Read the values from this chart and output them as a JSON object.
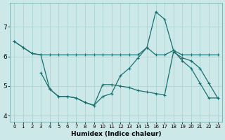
{
  "xlabel": "Humidex (Indice chaleur)",
  "background_color": "#cce8e8",
  "grid_color": "#aed4d4",
  "line_color": "#1a7070",
  "xlim": [
    -0.5,
    23.5
  ],
  "ylim": [
    3.8,
    7.8
  ],
  "yticks": [
    4,
    5,
    6,
    7
  ],
  "xticks": [
    0,
    1,
    2,
    3,
    4,
    5,
    6,
    7,
    8,
    9,
    10,
    11,
    12,
    13,
    14,
    15,
    16,
    17,
    18,
    19,
    20,
    21,
    22,
    23
  ],
  "line1_x": [
    0,
    1,
    2,
    3,
    4,
    5,
    6,
    7,
    8,
    9,
    10,
    11,
    12,
    13,
    14,
    15,
    16,
    17,
    18,
    19,
    20,
    21,
    22,
    23
  ],
  "line1_y": [
    6.5,
    6.3,
    6.1,
    6.05,
    6.05,
    6.05,
    6.05,
    6.05,
    6.05,
    6.05,
    6.05,
    6.05,
    6.05,
    6.05,
    6.05,
    6.3,
    6.05,
    6.05,
    6.2,
    6.05,
    6.05,
    6.05,
    6.05,
    6.05
  ],
  "line2_x": [
    0,
    1,
    2,
    3,
    4,
    5,
    6,
    7,
    8,
    9,
    10,
    11,
    12,
    13,
    14,
    15,
    16,
    17,
    18,
    19,
    20,
    21,
    22,
    23
  ],
  "line2_y": [
    6.5,
    6.3,
    6.1,
    6.05,
    4.9,
    4.65,
    4.65,
    4.6,
    4.45,
    4.35,
    4.65,
    4.75,
    5.35,
    5.6,
    5.95,
    6.3,
    7.5,
    7.25,
    6.2,
    5.85,
    5.6,
    5.1,
    4.6,
    4.6
  ],
  "line3_x": [
    3,
    4,
    5,
    6,
    7,
    8,
    9,
    10,
    11,
    12,
    13,
    14,
    15,
    16,
    17,
    18,
    19,
    20,
    21,
    22,
    23
  ],
  "line3_y": [
    5.45,
    4.9,
    4.65,
    4.65,
    4.6,
    4.45,
    4.35,
    5.05,
    5.05,
    5.0,
    4.95,
    4.85,
    4.8,
    4.75,
    4.7,
    6.15,
    5.95,
    5.85,
    5.6,
    5.1,
    4.6
  ]
}
